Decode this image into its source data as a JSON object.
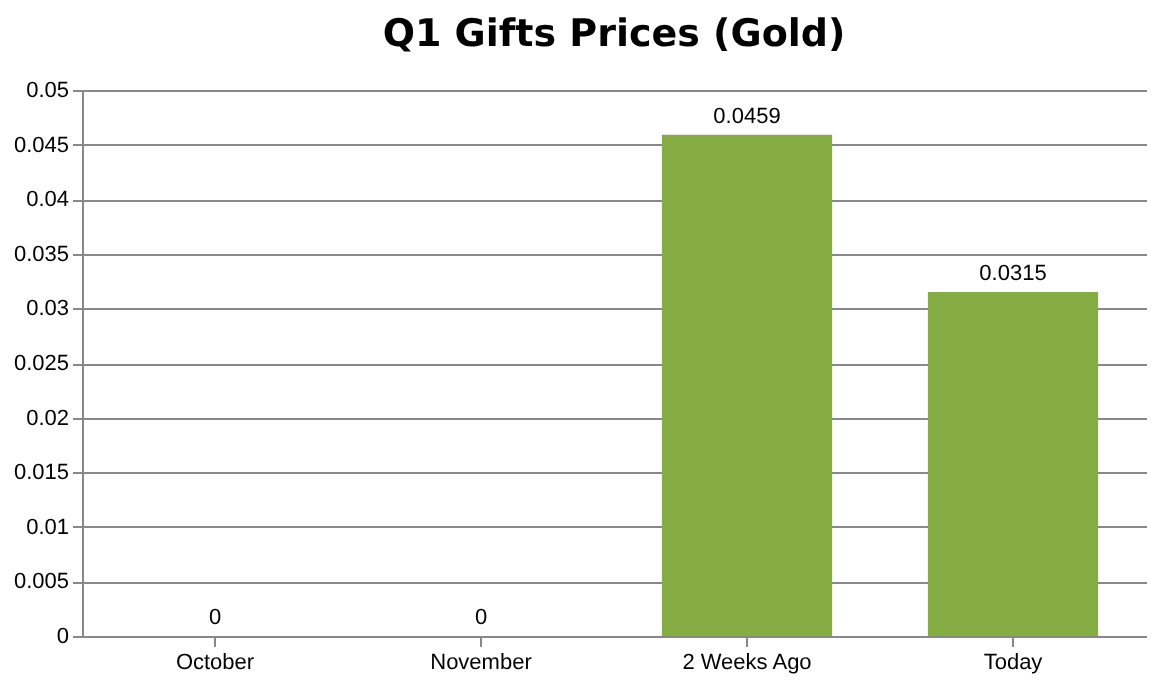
{
  "chart_data": {
    "type": "bar",
    "title": "Q1 Gifts Prices (Gold)",
    "categories": [
      "October",
      "November",
      "2 Weeks Ago",
      "Today"
    ],
    "values": [
      0,
      0,
      0.0459,
      0.0315
    ],
    "color": "#86ad44",
    "ylim": [
      0,
      0.05
    ],
    "yticks": [
      0,
      0.005,
      0.01,
      0.015,
      0.02,
      0.025,
      0.03,
      0.035,
      0.04,
      0.045,
      0.05
    ],
    "grid": "y",
    "data_labels": true
  }
}
